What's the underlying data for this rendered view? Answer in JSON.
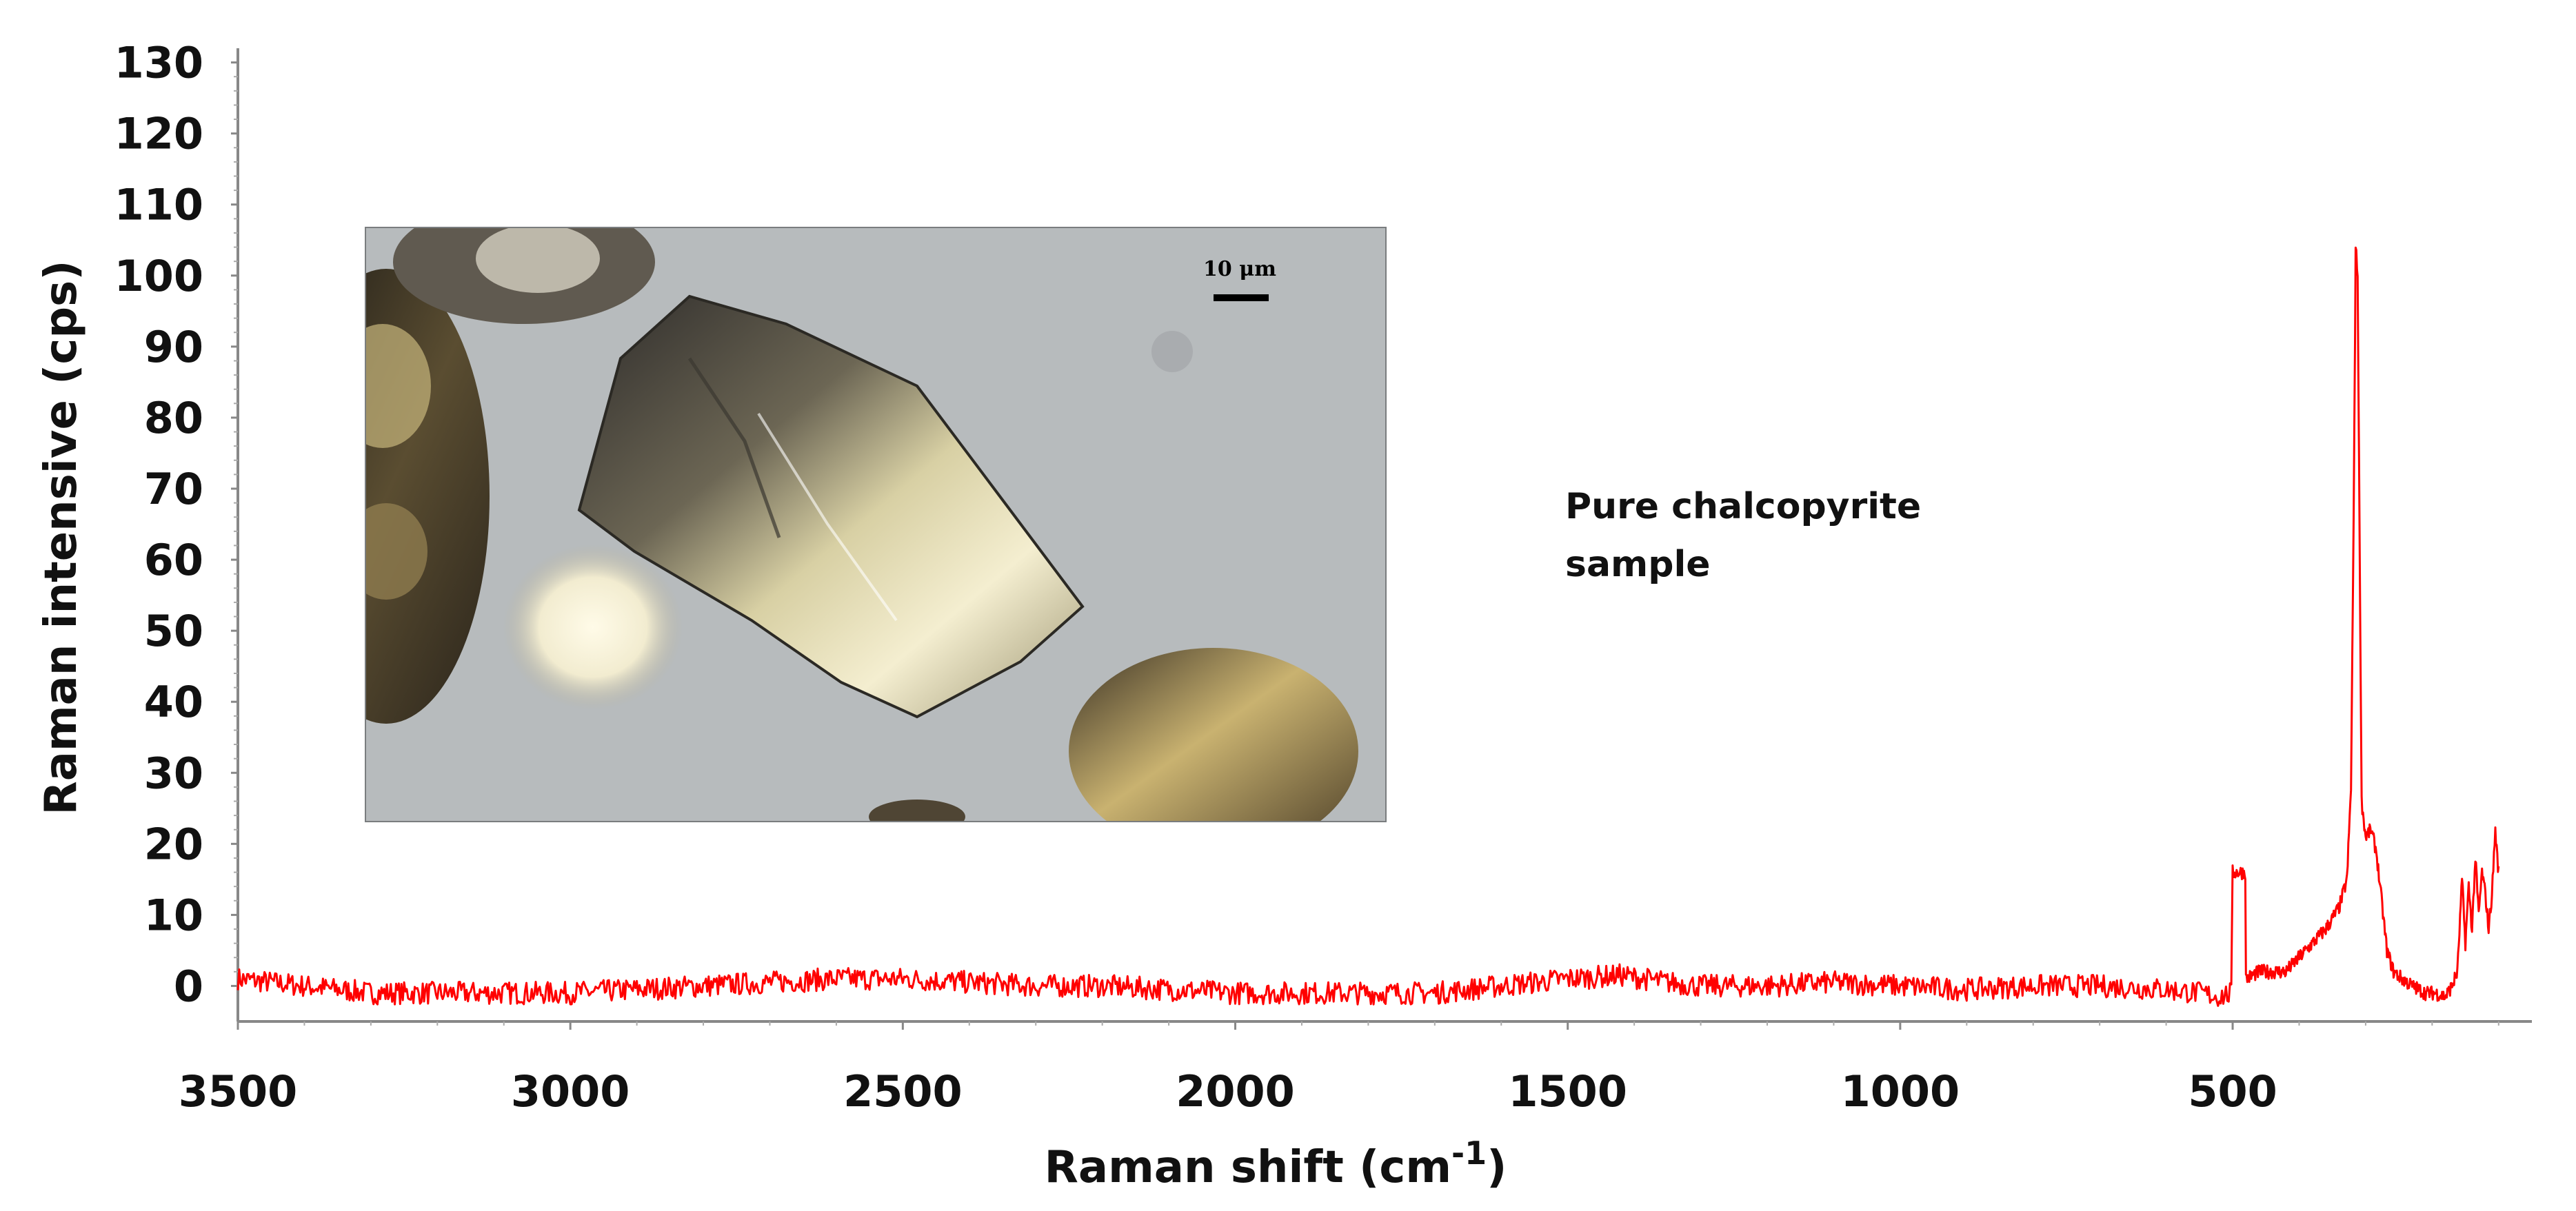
{
  "chart_data": {
    "type": "line",
    "title": "",
    "xlabel": "Raman shift (cm",
    "xlabel_superscript": "-1",
    "xlabel_close": ")",
    "ylabel": "Raman intensive (cps)",
    "xlim": [
      3500,
      50
    ],
    "ylim": [
      -5,
      132
    ],
    "x_ticks": [
      3500,
      3000,
      2500,
      2000,
      1500,
      1000,
      500
    ],
    "y_ticks": [
      0,
      10,
      20,
      30,
      40,
      50,
      60,
      70,
      80,
      90,
      100,
      110,
      120,
      130
    ],
    "grid": false,
    "series": [
      {
        "color": "#ff0000",
        "baseline": [
          [
            3500,
            1
          ],
          [
            3400,
            0
          ],
          [
            3300,
            -1
          ],
          [
            3200,
            -1
          ],
          [
            3100,
            -1
          ],
          [
            3000,
            -1
          ],
          [
            2900,
            -0.5
          ],
          [
            2800,
            0
          ],
          [
            2700,
            0.5
          ],
          [
            2600,
            1
          ],
          [
            2500,
            1
          ],
          [
            2400,
            0.5
          ],
          [
            2300,
            0
          ],
          [
            2200,
            0
          ],
          [
            2100,
            -0.5
          ],
          [
            2000,
            -1
          ],
          [
            1900,
            -1
          ],
          [
            1800,
            -1
          ],
          [
            1700,
            -1
          ],
          [
            1600,
            0
          ],
          [
            1500,
            1
          ],
          [
            1420,
            1.5
          ],
          [
            1350,
            0.5
          ],
          [
            1300,
            0
          ],
          [
            1200,
            0
          ],
          [
            1100,
            0.5
          ],
          [
            1000,
            0
          ],
          [
            900,
            -0.5
          ],
          [
            800,
            0
          ],
          [
            700,
            0
          ],
          [
            600,
            -0.5
          ],
          [
            550,
            -1
          ],
          [
            520,
            -1.5
          ],
          [
            500,
            -1
          ]
        ],
        "peaks": [
          [
            480,
            1
          ],
          [
            460,
            2
          ],
          [
            440,
            2
          ],
          [
            420,
            2
          ],
          [
            400,
            4
          ],
          [
            380,
            6
          ],
          [
            360,
            8
          ],
          [
            340,
            11
          ],
          [
            328,
            15
          ],
          [
            322,
            28
          ],
          [
            318,
            66
          ],
          [
            315,
            104
          ],
          [
            312,
            100
          ],
          [
            309,
            62
          ],
          [
            306,
            26
          ],
          [
            300,
            21
          ],
          [
            292,
            22
          ],
          [
            284,
            19
          ],
          [
            276,
            12
          ],
          [
            268,
            5
          ],
          [
            258,
            2
          ],
          [
            245,
            1
          ],
          [
            230,
            0
          ],
          [
            210,
            -1
          ],
          [
            195,
            -1
          ],
          [
            180,
            -1.5
          ],
          [
            170,
            0
          ],
          [
            162,
            2
          ],
          [
            155,
            15
          ],
          [
            150,
            6
          ],
          [
            145,
            14
          ],
          [
            140,
            8
          ],
          [
            135,
            18
          ],
          [
            130,
            10
          ],
          [
            125,
            16
          ],
          [
            120,
            13
          ],
          [
            115,
            8
          ],
          [
            110,
            13
          ],
          [
            105,
            22
          ],
          [
            102,
            18
          ],
          [
            100,
            16
          ]
        ]
      }
    ],
    "annotation": [
      "Pure chalcopyrite",
      "sample"
    ],
    "inset": {
      "scale_bar_label": "10 μm"
    }
  }
}
